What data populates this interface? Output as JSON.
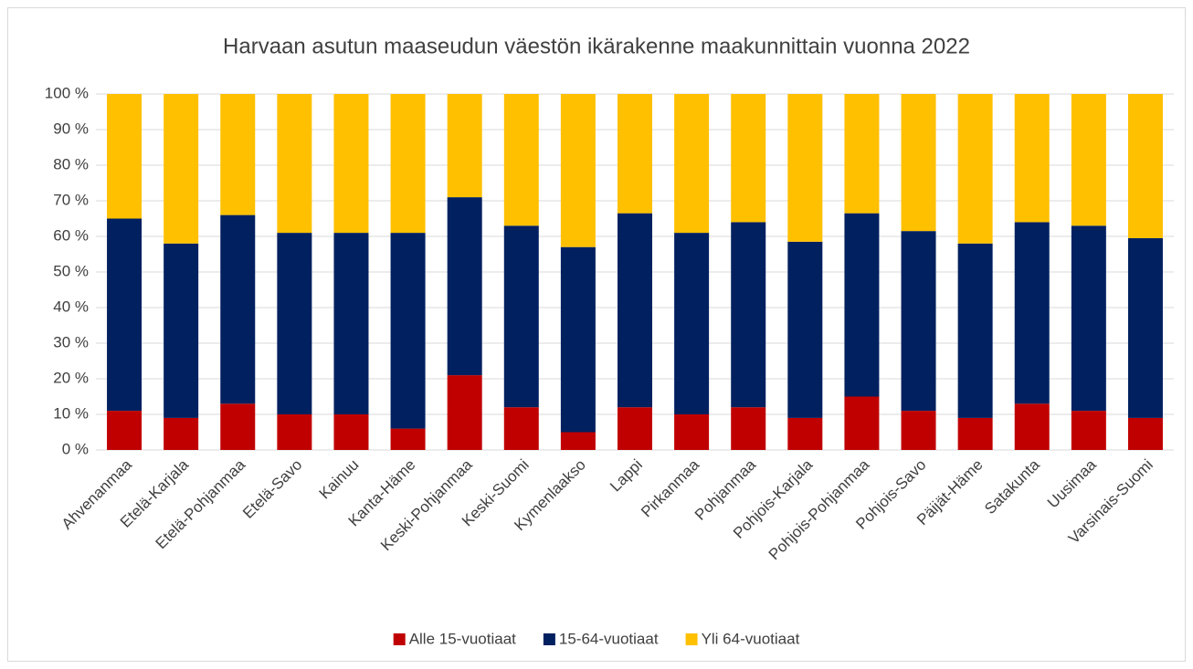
{
  "chart_data": {
    "type": "stacked_bar",
    "title": "Harvaan asutun maaseudun väestön ikärakenne maakunnittain vuonna  2022",
    "categories": [
      "Ahvenanmaa",
      "Etelä-Karjala",
      "Etelä-Pohjanmaa",
      "Etelä-Savo",
      "Kainuu",
      "Kanta-Häme",
      "Keski-Pohjanmaa",
      "Keski-Suomi",
      "Kymenlaakso",
      "Lappi",
      "Pirkanmaa",
      "Pohjanmaa",
      "Pohjois-Karjala",
      "Pohjois-Pohjanmaa",
      "Pohjois-Savo",
      "Päijät-Häme",
      "Satakunta",
      "Uusimaa",
      "Varsinais-Suomi"
    ],
    "series": [
      {
        "name": "Alle 15-vuotiaat",
        "color": "#c00000",
        "values": [
          11,
          9,
          13,
          10,
          10,
          6,
          21,
          12,
          5,
          12,
          10,
          12,
          9,
          15,
          11,
          9,
          13,
          11,
          9
        ]
      },
      {
        "name": "15-64-vuotiaat",
        "color": "#002060",
        "values": [
          54,
          49,
          53,
          51,
          51,
          55,
          50,
          51,
          52,
          54.5,
          51,
          52,
          49.5,
          51.5,
          50.5,
          49,
          51,
          52,
          50.5
        ]
      },
      {
        "name": "Yli 64-vuotiaat",
        "color": "#ffc000",
        "values": [
          35,
          42,
          34,
          39,
          39,
          39,
          29,
          37,
          43,
          33.5,
          39,
          36,
          41.5,
          33.5,
          38.5,
          42,
          36,
          37,
          40.5
        ]
      }
    ],
    "ylim": [
      0,
      100
    ],
    "yticks": [
      {
        "value": 0,
        "label": "0 %"
      },
      {
        "value": 10,
        "label": "10 %"
      },
      {
        "value": 20,
        "label": "20 %"
      },
      {
        "value": 30,
        "label": "30 %"
      },
      {
        "value": 40,
        "label": "40 %"
      },
      {
        "value": 50,
        "label": "50 %"
      },
      {
        "value": 60,
        "label": "60 %"
      },
      {
        "value": 70,
        "label": "70 %"
      },
      {
        "value": 80,
        "label": "80 %"
      },
      {
        "value": 90,
        "label": "90 %"
      },
      {
        "value": 100,
        "label": "100 %"
      }
    ],
    "grid": true,
    "legend": "bottom"
  }
}
